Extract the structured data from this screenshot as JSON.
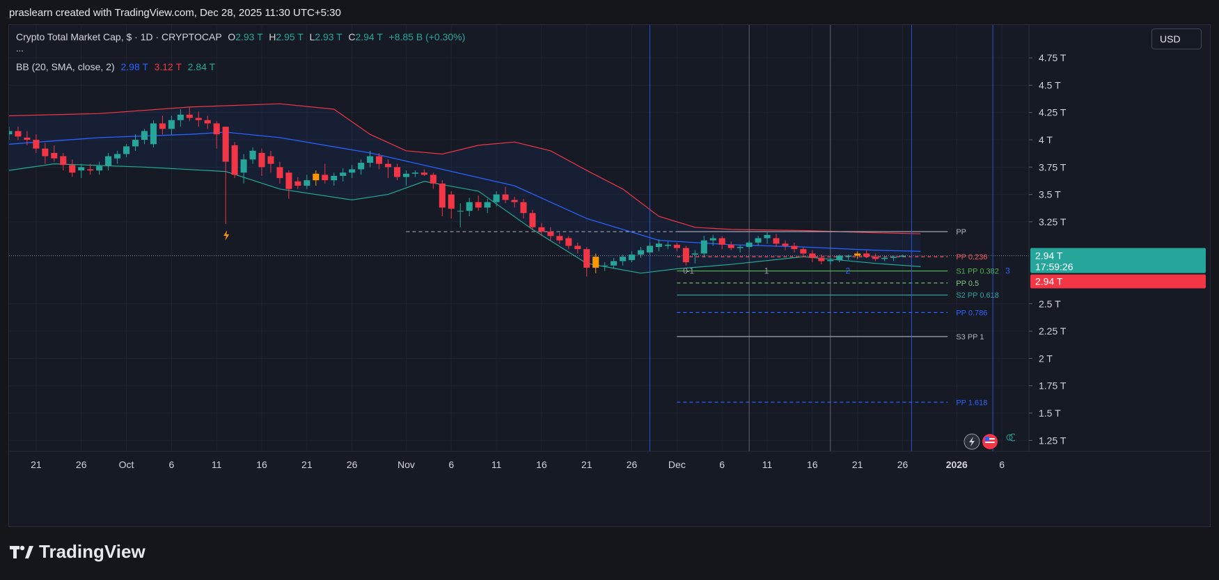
{
  "attribution": "praslearn created with TradingView.com, Dec 28, 2025 11:30 UTC+5:30",
  "legend": {
    "symbol": "Crypto Total Market Cap, $ · 1D · CRYPTOCAP",
    "open_label": "O",
    "open": "2.93 T",
    "high_label": "H",
    "high": "2.95 T",
    "low_label": "L",
    "low": "2.93 T",
    "close_label": "C",
    "close": "2.94 T",
    "change": "+8.85 B (+0.30%)",
    "more": "...",
    "bb_label": "BB (20, SMA, close, 2)",
    "bb_basis": "2.98 T",
    "bb_upper": "3.12 T",
    "bb_lower": "2.84 T"
  },
  "currency": "USD",
  "brand": "TradingView",
  "colors": {
    "up": "#26a69a",
    "down": "#f23645",
    "warn": "#ff9800",
    "bb_basis": "#2962ff",
    "bb_upper": "#f23645",
    "bb_lower": "#22ab94"
  },
  "chart_data": {
    "type": "candlestick",
    "y_unit": "T",
    "ylim": [
      1.15,
      5.05
    ],
    "xlim": [
      "2025-09-18",
      "2026-01-09"
    ],
    "y_ticks": [
      {
        "value": 1.25,
        "label": "1.25 T"
      },
      {
        "value": 1.5,
        "label": "1.5 T"
      },
      {
        "value": 1.75,
        "label": "1.75 T"
      },
      {
        "value": 2.0,
        "label": "2 T"
      },
      {
        "value": 2.25,
        "label": "2.25 T"
      },
      {
        "value": 2.5,
        "label": "2.5 T"
      },
      {
        "value": 3.25,
        "label": "3.25 T"
      },
      {
        "value": 3.5,
        "label": "3.5 T"
      },
      {
        "value": 3.75,
        "label": "3.75 T"
      },
      {
        "value": 4.0,
        "label": "4 T"
      },
      {
        "value": 4.25,
        "label": "4.25 T"
      },
      {
        "value": 4.5,
        "label": "4.5 T"
      },
      {
        "value": 4.75,
        "label": "4.75 T"
      }
    ],
    "x_ticks": [
      {
        "date": "2025-09-21",
        "label": "21"
      },
      {
        "date": "2025-09-26",
        "label": "26"
      },
      {
        "date": "2025-10-01",
        "label": "Oct"
      },
      {
        "date": "2025-10-06",
        "label": "6"
      },
      {
        "date": "2025-10-11",
        "label": "11"
      },
      {
        "date": "2025-10-16",
        "label": "16"
      },
      {
        "date": "2025-10-21",
        "label": "21"
      },
      {
        "date": "2025-10-26",
        "label": "26"
      },
      {
        "date": "2025-11-01",
        "label": "Nov"
      },
      {
        "date": "2025-11-06",
        "label": "6"
      },
      {
        "date": "2025-11-11",
        "label": "11"
      },
      {
        "date": "2025-11-16",
        "label": "16"
      },
      {
        "date": "2025-11-21",
        "label": "21"
      },
      {
        "date": "2025-11-26",
        "label": "26"
      },
      {
        "date": "2025-12-01",
        "label": "Dec"
      },
      {
        "date": "2025-12-06",
        "label": "6"
      },
      {
        "date": "2025-12-11",
        "label": "11"
      },
      {
        "date": "2025-12-16",
        "label": "16"
      },
      {
        "date": "2025-12-21",
        "label": "21"
      },
      {
        "date": "2025-12-26",
        "label": "26"
      },
      {
        "date": "2026-01-01",
        "label": "2026"
      },
      {
        "date": "2026-01-06",
        "label": "6"
      }
    ],
    "start_date": "2025-09-18",
    "ohlc": [
      [
        4.05,
        4.12,
        4.0,
        4.08
      ],
      [
        4.08,
        4.12,
        4.0,
        4.03
      ],
      [
        4.02,
        4.08,
        3.95,
        4.0
      ],
      [
        4.0,
        4.05,
        3.88,
        3.92
      ],
      [
        3.92,
        3.97,
        3.78,
        3.85
      ],
      [
        3.88,
        3.95,
        3.8,
        3.83
      ],
      [
        3.85,
        3.88,
        3.72,
        3.77
      ],
      [
        3.77,
        3.82,
        3.66,
        3.7
      ],
      [
        3.72,
        3.78,
        3.65,
        3.75
      ],
      [
        3.73,
        3.78,
        3.68,
        3.72
      ],
      [
        3.72,
        3.8,
        3.68,
        3.76
      ],
      [
        3.76,
        3.88,
        3.72,
        3.85
      ],
      [
        3.83,
        3.9,
        3.78,
        3.87
      ],
      [
        3.87,
        3.96,
        3.84,
        3.94
      ],
      [
        3.94,
        4.05,
        3.9,
        4.0
      ],
      [
        4.0,
        4.1,
        3.96,
        4.08
      ],
      [
        3.96,
        4.18,
        3.93,
        4.15
      ],
      [
        4.15,
        4.22,
        4.05,
        4.1
      ],
      [
        4.1,
        4.22,
        4.05,
        4.18
      ],
      [
        4.18,
        4.28,
        4.12,
        4.23
      ],
      [
        4.23,
        4.3,
        4.17,
        4.2
      ],
      [
        4.2,
        4.26,
        4.12,
        4.18
      ],
      [
        4.18,
        4.22,
        4.1,
        4.15
      ],
      [
        4.15,
        4.17,
        3.92,
        4.05
      ],
      [
        4.12,
        4.12,
        3.23,
        3.8
      ],
      [
        3.95,
        3.98,
        3.65,
        3.68
      ],
      [
        3.7,
        3.87,
        3.6,
        3.82
      ],
      [
        3.82,
        3.93,
        3.78,
        3.9
      ],
      [
        3.88,
        3.92,
        3.67,
        3.75
      ],
      [
        3.85,
        3.9,
        3.7,
        3.78
      ],
      [
        3.75,
        3.8,
        3.6,
        3.65
      ],
      [
        3.7,
        3.72,
        3.46,
        3.55
      ],
      [
        3.62,
        3.66,
        3.55,
        3.58
      ],
      [
        3.58,
        3.68,
        3.55,
        3.63
      ],
      [
        3.63,
        3.72,
        3.58,
        3.69
      ],
      [
        3.68,
        3.78,
        3.6,
        3.63
      ],
      [
        3.63,
        3.7,
        3.58,
        3.67
      ],
      [
        3.67,
        3.74,
        3.62,
        3.7
      ],
      [
        3.7,
        3.77,
        3.65,
        3.73
      ],
      [
        3.73,
        3.82,
        3.68,
        3.79
      ],
      [
        3.79,
        3.9,
        3.75,
        3.85
      ],
      [
        3.85,
        3.88,
        3.73,
        3.78
      ],
      [
        3.78,
        3.82,
        3.65,
        3.75
      ],
      [
        3.75,
        3.78,
        3.63,
        3.66
      ],
      [
        3.66,
        3.72,
        3.58,
        3.69
      ],
      [
        3.69,
        3.72,
        3.66,
        3.7
      ],
      [
        3.7,
        3.73,
        3.67,
        3.68
      ],
      [
        3.68,
        3.7,
        3.55,
        3.6
      ],
      [
        3.6,
        3.63,
        3.3,
        3.38
      ],
      [
        3.5,
        3.53,
        3.28,
        3.37
      ],
      [
        3.35,
        3.42,
        3.2,
        3.35
      ],
      [
        3.35,
        3.47,
        3.3,
        3.43
      ],
      [
        3.43,
        3.49,
        3.35,
        3.38
      ],
      [
        3.38,
        3.46,
        3.33,
        3.43
      ],
      [
        3.43,
        3.53,
        3.39,
        3.5
      ],
      [
        3.5,
        3.57,
        3.42,
        3.45
      ],
      [
        3.45,
        3.48,
        3.38,
        3.43
      ],
      [
        3.43,
        3.46,
        3.28,
        3.33
      ],
      [
        3.33,
        3.36,
        3.18,
        3.2
      ],
      [
        3.2,
        3.24,
        3.12,
        3.16
      ],
      [
        3.16,
        3.2,
        3.08,
        3.12
      ],
      [
        3.12,
        3.15,
        3.05,
        3.08
      ],
      [
        3.1,
        3.12,
        3.0,
        3.03
      ],
      [
        3.03,
        3.06,
        2.96,
        3.0
      ],
      [
        3.0,
        3.02,
        2.75,
        2.83
      ],
      [
        2.93,
        2.96,
        2.78,
        2.83
      ],
      [
        2.85,
        2.88,
        2.8,
        2.85
      ],
      [
        2.85,
        2.92,
        2.82,
        2.89
      ],
      [
        2.89,
        2.95,
        2.85,
        2.93
      ],
      [
        2.9,
        2.98,
        2.88,
        2.95
      ],
      [
        2.95,
        3.02,
        2.92,
        2.99
      ],
      [
        2.97,
        3.06,
        2.95,
        3.03
      ],
      [
        3.02,
        3.09,
        2.98,
        3.05
      ],
      [
        3.03,
        3.07,
        3.0,
        3.04
      ],
      [
        3.04,
        3.06,
        2.98,
        3.01
      ],
      [
        3.01,
        3.03,
        2.85,
        2.88
      ],
      [
        2.95,
        2.99,
        2.87,
        2.96
      ],
      [
        2.96,
        3.12,
        2.93,
        3.08
      ],
      [
        3.08,
        3.13,
        3.03,
        3.1
      ],
      [
        3.1,
        3.12,
        3.0,
        3.04
      ],
      [
        3.04,
        3.07,
        2.99,
        3.01
      ],
      [
        3.01,
        3.04,
        2.97,
        3.02
      ],
      [
        3.02,
        3.08,
        3.0,
        3.06
      ],
      [
        3.06,
        3.12,
        3.03,
        3.1
      ],
      [
        3.1,
        3.16,
        3.05,
        3.13
      ],
      [
        3.1,
        3.14,
        3.02,
        3.05
      ],
      [
        3.05,
        3.08,
        2.99,
        3.03
      ],
      [
        3.03,
        3.06,
        2.97,
        3.0
      ],
      [
        3.0,
        3.02,
        2.93,
        2.96
      ],
      [
        2.96,
        2.99,
        2.88,
        2.92
      ],
      [
        2.92,
        2.95,
        2.86,
        2.89
      ],
      [
        2.89,
        2.92,
        2.86,
        2.9
      ],
      [
        2.9,
        2.95,
        2.88,
        2.94
      ],
      [
        2.93,
        2.95,
        2.9,
        2.94
      ],
      [
        2.94,
        2.98,
        2.91,
        2.96
      ],
      [
        2.96,
        2.99,
        2.92,
        2.93
      ],
      [
        2.93,
        2.96,
        2.89,
        2.91
      ],
      [
        2.91,
        2.94,
        2.89,
        2.92
      ],
      [
        2.92,
        2.94,
        2.89,
        2.93
      ],
      [
        2.93,
        2.95,
        2.93,
        2.94
      ]
    ],
    "amber_candle_dates": [
      "2025-10-22",
      "2025-11-22",
      "2025-12-21",
      "2026-12-27"
    ],
    "bollinger": {
      "upper": [
        [
          0,
          4.22
        ],
        [
          10,
          4.24
        ],
        [
          20,
          4.3
        ],
        [
          30,
          4.33
        ],
        [
          36,
          4.28
        ],
        [
          40,
          4.05
        ],
        [
          44,
          3.9
        ],
        [
          48,
          3.87
        ],
        [
          52,
          3.95
        ],
        [
          56,
          3.98
        ],
        [
          60,
          3.9
        ],
        [
          64,
          3.72
        ],
        [
          68,
          3.55
        ],
        [
          72,
          3.3
        ],
        [
          76,
          3.2
        ],
        [
          80,
          3.18
        ],
        [
          88,
          3.17
        ],
        [
          96,
          3.15
        ],
        [
          101,
          3.14
        ]
      ],
      "basis": [
        [
          0,
          3.96
        ],
        [
          10,
          4.02
        ],
        [
          20,
          4.05
        ],
        [
          24,
          4.07
        ],
        [
          30,
          4.02
        ],
        [
          40,
          3.88
        ],
        [
          48,
          3.73
        ],
        [
          56,
          3.58
        ],
        [
          64,
          3.28
        ],
        [
          72,
          3.08
        ],
        [
          80,
          3.04
        ],
        [
          88,
          3.02
        ],
        [
          96,
          2.99
        ],
        [
          101,
          2.98
        ]
      ],
      "lower": [
        [
          0,
          3.72
        ],
        [
          5,
          3.78
        ],
        [
          15,
          3.75
        ],
        [
          24,
          3.71
        ],
        [
          30,
          3.55
        ],
        [
          38,
          3.45
        ],
        [
          42,
          3.5
        ],
        [
          46,
          3.62
        ],
        [
          52,
          3.53
        ],
        [
          58,
          3.18
        ],
        [
          64,
          2.87
        ],
        [
          70,
          2.78
        ],
        [
          74,
          2.82
        ],
        [
          80,
          2.86
        ],
        [
          88,
          2.93
        ],
        [
          96,
          2.87
        ],
        [
          101,
          2.84
        ]
      ]
    },
    "pivot_levels": [
      {
        "label": "PP",
        "value": 3.16
      },
      {
        "label": "PP 0.236",
        "value": 2.93
      },
      {
        "label": "S1 PP 0.382",
        "value": 2.8
      },
      {
        "label": "PP 0.5",
        "value": 2.69
      },
      {
        "label": "S2 PP 0.618",
        "value": 2.58
      },
      {
        "label": "PP 0.786",
        "value": 2.42
      },
      {
        "label": "S3 PP 1",
        "value": 2.2
      },
      {
        "label": "PP 1.618",
        "value": 1.6
      }
    ],
    "pivot_extension": "PP",
    "period_markers": [
      {
        "date": "2025-11-28",
        "label": ""
      },
      {
        "date": "2025-12-08",
        "label": "-1"
      },
      {
        "date": "2025-12-09",
        "label": "0"
      },
      {
        "date": "2025-12-18",
        "label": "1"
      },
      {
        "date": "2025-12-27",
        "label": "2"
      },
      {
        "date": "2026-01-05",
        "label": "3"
      }
    ],
    "price_labels": [
      {
        "value": "2.94 T",
        "extra": "17:59:26",
        "color": "#26a69a"
      },
      {
        "value": "2.94 T",
        "color": "#f23645"
      }
    ],
    "current_price": 2.94
  }
}
